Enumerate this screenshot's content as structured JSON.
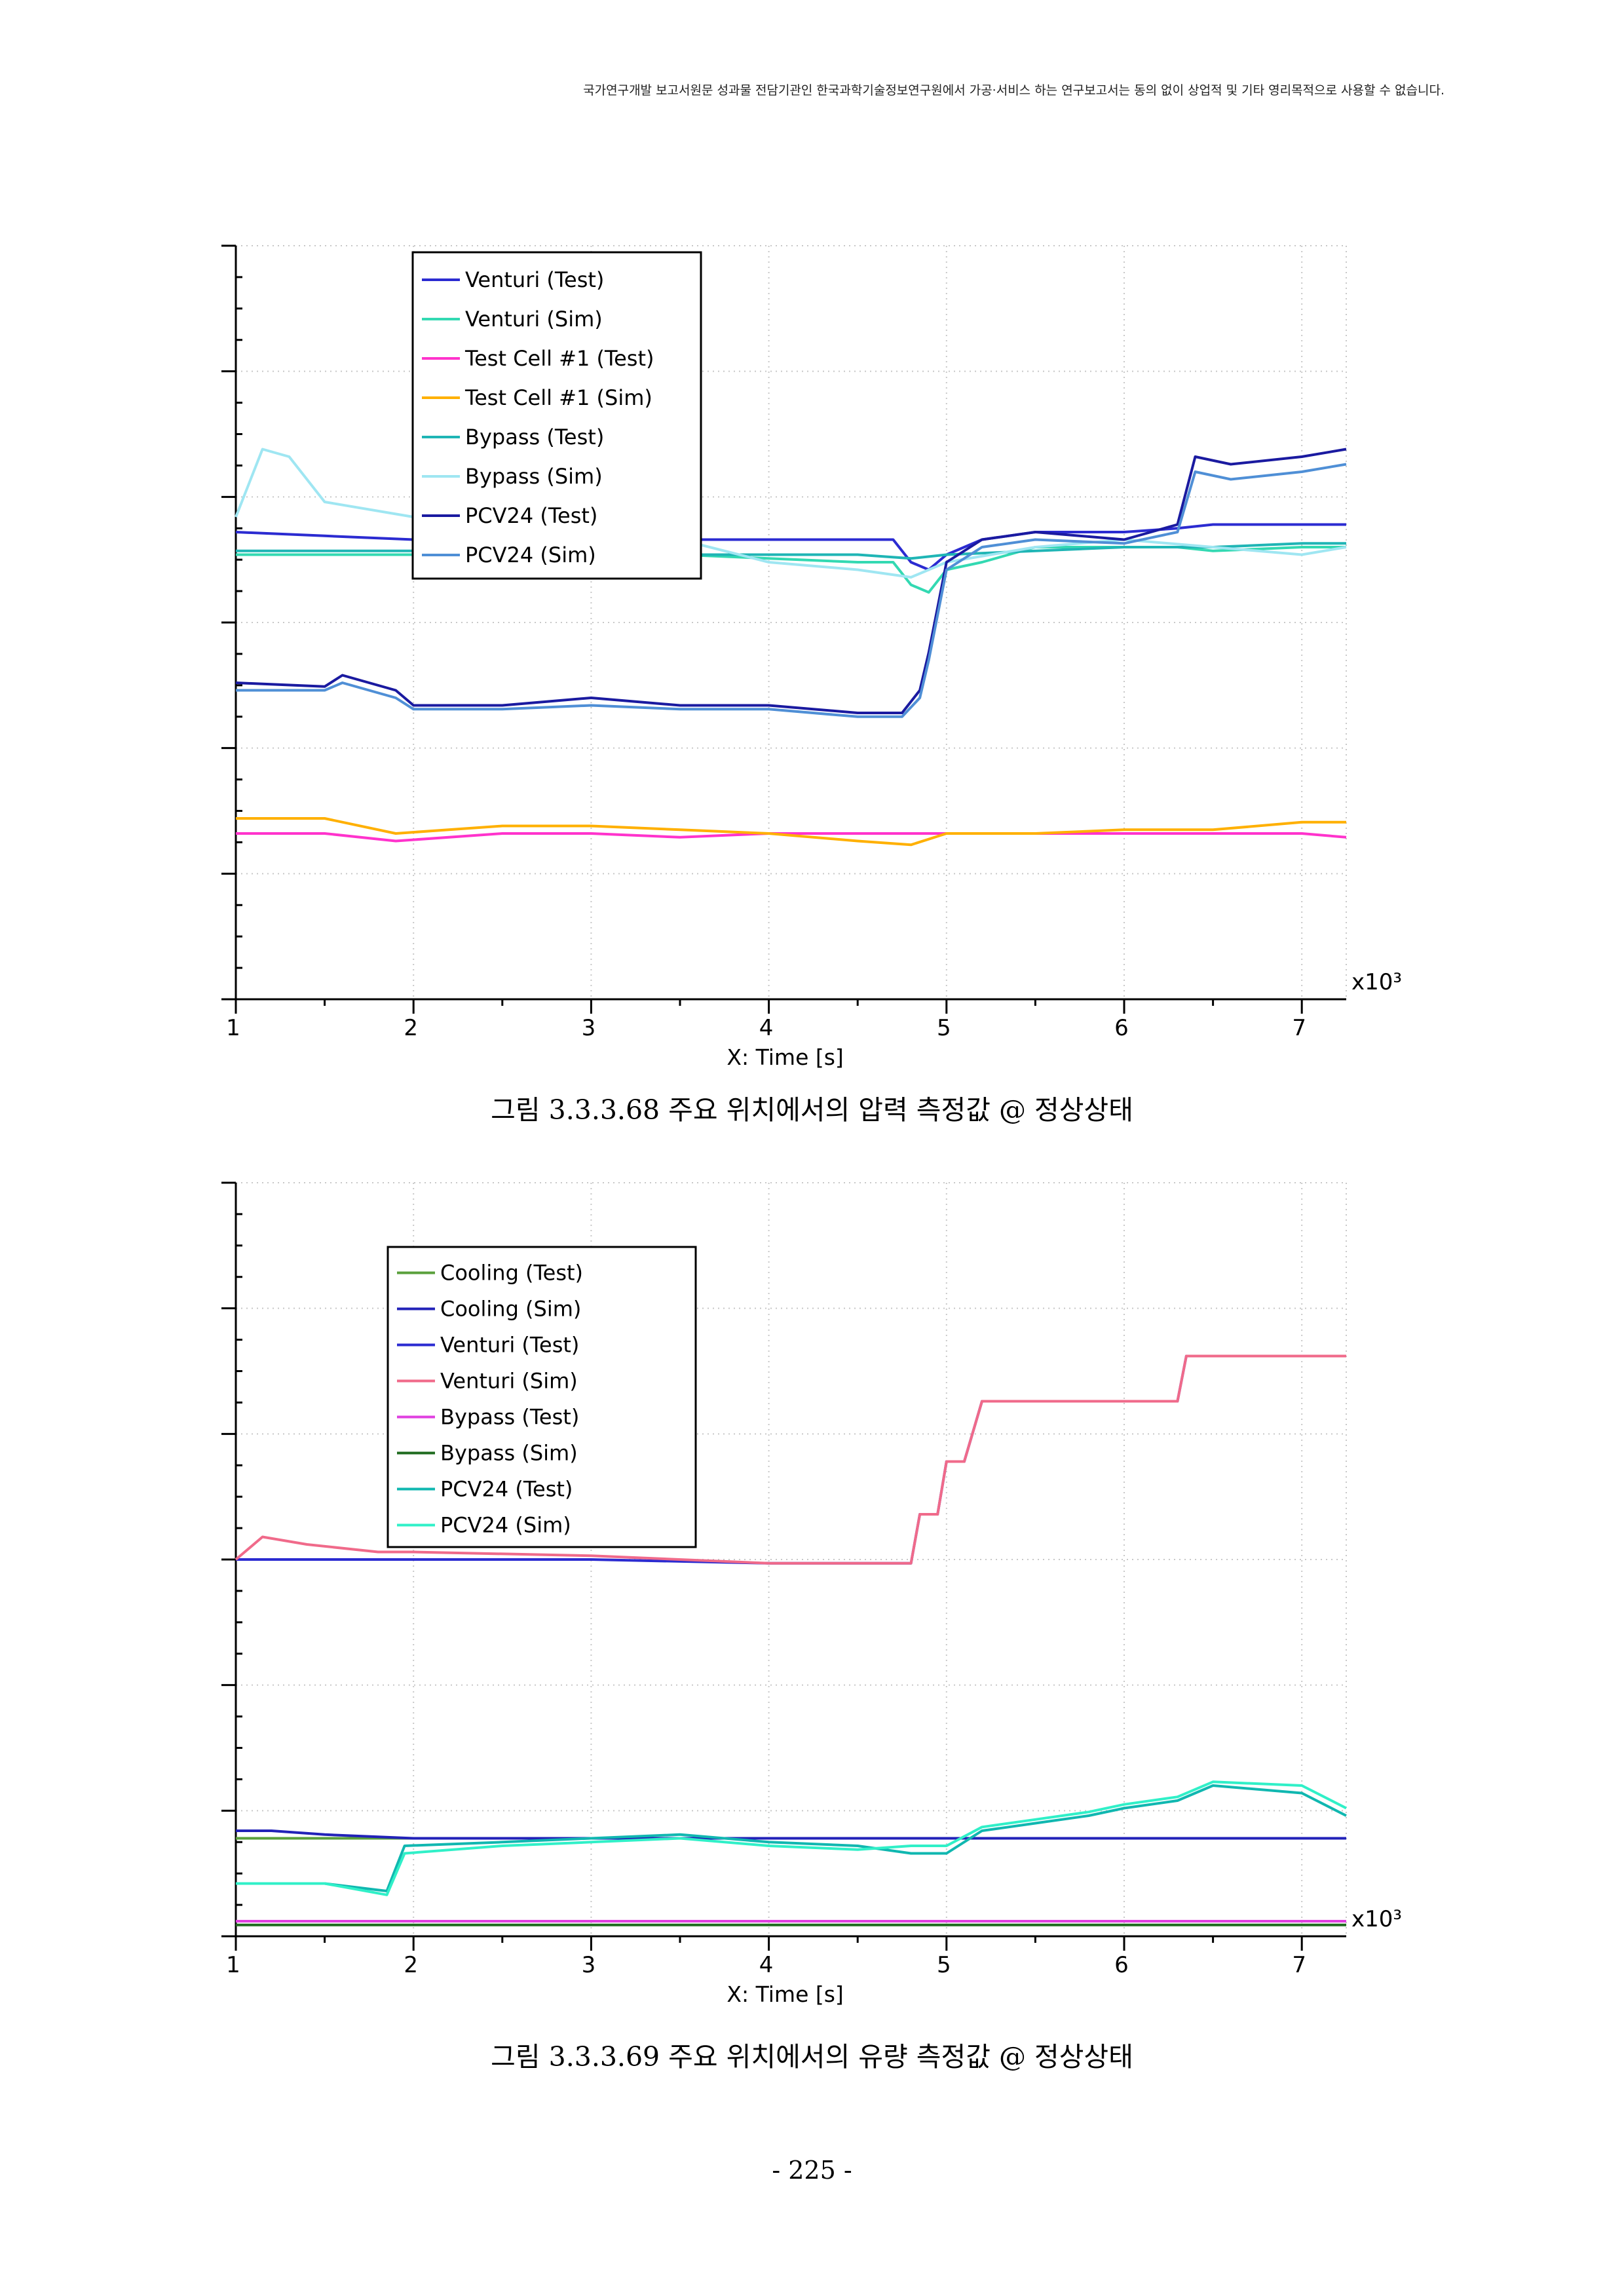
{
  "header": {
    "note": "국가연구개발 보고서원문 성과물 전담기관인 한국과학기술정보연구원에서 가공·서비스 하는 연구보고서는 동의 없이 상업적 및 기타 영리목적으로 사용할 수 없습니다."
  },
  "captions": {
    "figure1": "그림 3.3.3.68 주요 위치에서의 압력 측정값 @ 정상상태",
    "figure2": "그림 3.3.3.69 주요 위치에서의 유량 측정값 @ 정상상태"
  },
  "page_number": "- 225 -",
  "chart_data": [
    {
      "type": "line",
      "title": "",
      "xlabel": "X: Time [s]",
      "ylabel": "",
      "x_multiplier_label": "x10³",
      "xlim": [
        1,
        7.25
      ],
      "ylim": [
        0,
        100
      ],
      "x_ticks": [
        1,
        2,
        3,
        4,
        5,
        6,
        7
      ],
      "grid": true,
      "legend_position": "top-left",
      "series": [
        {
          "name": "Venturi (Test)",
          "color": "#2b2bd1",
          "x": [
            1.0,
            1.5,
            2.0,
            2.5,
            3.0,
            3.5,
            4.0,
            4.5,
            4.7,
            4.8,
            4.9,
            5.0,
            5.2,
            5.5,
            6.0,
            6.3,
            6.5,
            7.0,
            7.25
          ],
          "y": [
            62,
            61.5,
            61,
            61,
            61,
            61,
            61,
            61,
            61,
            58,
            57,
            59,
            61,
            62,
            62,
            62.5,
            63,
            63,
            63
          ]
        },
        {
          "name": "Venturi (Sim)",
          "color": "#33d9b2",
          "x": [
            1.0,
            1.5,
            2.0,
            2.5,
            3.0,
            3.5,
            4.0,
            4.5,
            4.7,
            4.8,
            4.9,
            5.0,
            5.2,
            5.5,
            6.0,
            6.3,
            6.5,
            7.0,
            7.25
          ],
          "y": [
            59,
            59,
            59,
            59,
            59,
            59,
            58.5,
            58,
            58,
            55,
            54,
            57,
            58,
            60,
            60,
            60,
            59.5,
            60,
            60
          ]
        },
        {
          "name": "Test Cell #1 (Test)",
          "color": "#ff33cc",
          "x": [
            1.0,
            1.5,
            1.9,
            2.5,
            3.0,
            3.5,
            4.0,
            4.5,
            4.8,
            5.0,
            5.5,
            6.0,
            6.5,
            7.0,
            7.25
          ],
          "y": [
            22,
            22,
            21,
            22,
            22,
            21.5,
            22,
            22,
            22,
            22,
            22,
            22,
            22,
            22,
            21.5
          ]
        },
        {
          "name": "Test Cell #1 (Sim)",
          "color": "#ffb000",
          "x": [
            1.0,
            1.5,
            1.9,
            2.5,
            3.0,
            3.5,
            4.0,
            4.5,
            4.8,
            5.0,
            5.5,
            6.0,
            6.5,
            7.0,
            7.25
          ],
          "y": [
            24,
            24,
            22,
            23,
            23,
            22.5,
            22,
            21,
            20.5,
            22,
            22,
            22.5,
            22.5,
            23.5,
            23.5
          ]
        },
        {
          "name": "Bypass (Test)",
          "color": "#1fb5b5",
          "x": [
            1.0,
            1.5,
            2.0,
            2.5,
            3.0,
            3.5,
            4.0,
            4.5,
            4.8,
            5.0,
            5.5,
            6.0,
            6.5,
            7.0,
            7.25
          ],
          "y": [
            59.5,
            59.5,
            59.5,
            59.5,
            59.5,
            59,
            59,
            59,
            58.5,
            59,
            59.5,
            60,
            60,
            60.5,
            60.5
          ]
        },
        {
          "name": "Bypass (Sim)",
          "color": "#9fe6f2",
          "x": [
            1.0,
            1.15,
            1.3,
            1.5,
            2.0,
            2.5,
            3.0,
            3.5,
            4.0,
            4.5,
            4.8,
            5.0,
            5.5,
            6.0,
            6.5,
            7.0,
            7.25
          ],
          "y": [
            64,
            73,
            72,
            66,
            64,
            63,
            62,
            61,
            58,
            57,
            56,
            58,
            60,
            61,
            60,
            59,
            60
          ]
        },
        {
          "name": "PCV24 (Test)",
          "color": "#1a1aa0",
          "x": [
            1.0,
            1.5,
            1.6,
            1.9,
            2.0,
            2.5,
            3.0,
            3.5,
            4.0,
            4.5,
            4.75,
            4.85,
            4.9,
            5.0,
            5.2,
            5.5,
            6.0,
            6.3,
            6.4,
            6.6,
            7.0,
            7.25
          ],
          "y": [
            42,
            41.5,
            43,
            41,
            39,
            39,
            40,
            39,
            39,
            38,
            38,
            41,
            46,
            58,
            61,
            62,
            61,
            63,
            72,
            71,
            72,
            73
          ]
        },
        {
          "name": "PCV24 (Sim)",
          "color": "#4f8fd6",
          "x": [
            1.0,
            1.5,
            1.6,
            1.9,
            2.0,
            2.5,
            3.0,
            3.5,
            4.0,
            4.5,
            4.75,
            4.85,
            4.9,
            5.0,
            5.2,
            5.5,
            6.0,
            6.3,
            6.4,
            6.6,
            7.0,
            7.25
          ],
          "y": [
            41,
            41,
            42,
            40,
            38.5,
            38.5,
            39,
            38.5,
            38.5,
            37.5,
            37.5,
            40,
            45,
            57,
            60,
            61,
            60.5,
            62,
            70,
            69,
            70,
            71
          ]
        }
      ]
    },
    {
      "type": "line",
      "title": "",
      "xlabel": "X: Time [s]",
      "ylabel": "",
      "x_multiplier_label": "x10³",
      "xlim": [
        1,
        7.25
      ],
      "ylim": [
        0,
        100
      ],
      "x_ticks": [
        1,
        2,
        3,
        4,
        5,
        6,
        7
      ],
      "grid": true,
      "legend_position": "top-left",
      "series": [
        {
          "name": "Cooling (Test)",
          "color": "#5aa03c",
          "x": [
            1.0,
            2.0,
            3.0,
            4.0,
            5.0,
            6.0,
            7.0,
            7.25
          ],
          "y": [
            13,
            13,
            13,
            13,
            13,
            13,
            13,
            13
          ]
        },
        {
          "name": "Cooling (Sim)",
          "color": "#2222b8",
          "x": [
            1.0,
            1.2,
            1.5,
            2.0,
            3.0,
            4.0,
            5.0,
            6.0,
            7.0,
            7.25
          ],
          "y": [
            14,
            14,
            13.5,
            13,
            13,
            13,
            13,
            13,
            13,
            13
          ]
        },
        {
          "name": "Venturi (Test)",
          "color": "#2b2bd1",
          "x": [
            1.0,
            1.5,
            2.0,
            3.0,
            4.0,
            4.7,
            4.8,
            4.85,
            4.95,
            5.0,
            5.1,
            5.2,
            5.6,
            6.0,
            6.3,
            6.35,
            6.45,
            7.0,
            7.25
          ],
          "y": [
            50,
            50,
            50,
            50,
            49.5,
            49.5,
            49.5,
            56,
            56,
            63,
            63,
            71,
            71,
            71,
            71,
            77,
            77,
            77,
            77
          ]
        },
        {
          "name": "Venturi (Sim)",
          "color": "#f06a8a",
          "x": [
            1.0,
            1.15,
            1.4,
            1.8,
            2.0,
            3.0,
            4.0,
            4.7,
            4.8,
            4.85,
            4.95,
            5.0,
            5.1,
            5.2,
            5.6,
            6.0,
            6.3,
            6.35,
            6.45,
            7.0,
            7.25
          ],
          "y": [
            50,
            53,
            52,
            51,
            51,
            50.5,
            49.5,
            49.5,
            49.5,
            56,
            56,
            63,
            63,
            71,
            71,
            71,
            71,
            77,
            77,
            77,
            77
          ]
        },
        {
          "name": "Bypass (Test)",
          "color": "#e040e0",
          "x": [
            1.0,
            2.0,
            3.0,
            4.0,
            5.0,
            6.0,
            7.0,
            7.25
          ],
          "y": [
            2,
            2,
            2,
            2,
            2,
            2,
            2,
            2
          ]
        },
        {
          "name": "Bypass (Sim)",
          "color": "#1f6b1f",
          "x": [
            1.0,
            2.0,
            3.0,
            4.0,
            5.0,
            6.0,
            7.0,
            7.25
          ],
          "y": [
            1.5,
            1.5,
            1.5,
            1.5,
            1.5,
            1.5,
            1.5,
            1.5
          ]
        },
        {
          "name": "PCV24 (Test)",
          "color": "#10b7b0",
          "x": [
            1.0,
            1.5,
            1.85,
            1.95,
            2.5,
            3.0,
            3.5,
            4.0,
            4.5,
            4.8,
            5.0,
            5.2,
            5.5,
            5.8,
            6.0,
            6.3,
            6.5,
            7.0,
            7.25
          ],
          "y": [
            7,
            7,
            6,
            12,
            12.5,
            13,
            13.5,
            12.5,
            12,
            11,
            11,
            14,
            15,
            16,
            17,
            18,
            20,
            19,
            16
          ]
        },
        {
          "name": "PCV24 (Sim)",
          "color": "#30f0c8",
          "x": [
            1.0,
            1.5,
            1.85,
            1.95,
            2.5,
            3.0,
            3.5,
            4.0,
            4.5,
            4.8,
            5.0,
            5.2,
            5.5,
            5.8,
            6.0,
            6.3,
            6.5,
            7.0,
            7.25
          ],
          "y": [
            7,
            7,
            5.5,
            11,
            12,
            12.5,
            13,
            12,
            11.5,
            12,
            12,
            14.5,
            15.5,
            16.5,
            17.5,
            18.5,
            20.5,
            20,
            17
          ]
        }
      ]
    }
  ]
}
